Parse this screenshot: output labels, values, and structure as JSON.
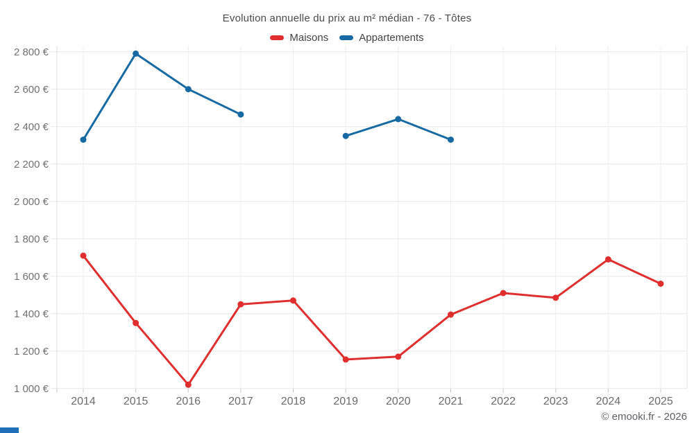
{
  "title": "Evolution annuelle du prix au m² médian - 76 - Tôtes",
  "legend": [
    {
      "label": "Maisons",
      "color": "#e02d2d"
    },
    {
      "label": "Appartements",
      "color": "#1769a4"
    }
  ],
  "footer": {
    "text": "© emooki.fr - 2026"
  },
  "accent_bar": {
    "color": "#1e6fb8"
  },
  "chart_data": {
    "type": "line",
    "title": "Evolution annuelle du prix au m² médian - 76 - Tôtes",
    "x": [
      "2014",
      "2015",
      "2016",
      "2017",
      "2018",
      "2019",
      "2020",
      "2021",
      "2022",
      "2023",
      "2024",
      "2025"
    ],
    "series": [
      {
        "name": "Maisons",
        "color": "#e02d2d",
        "values": [
          1710,
          1350,
          1020,
          1450,
          1470,
          1155,
          1170,
          1395,
          1510,
          1485,
          1690,
          1560
        ]
      },
      {
        "name": "Appartements",
        "color": "#1769a4",
        "values": [
          2330,
          2790,
          2600,
          2465,
          null,
          2350,
          2440,
          2330,
          null,
          null,
          null,
          null
        ]
      }
    ],
    "y_ticks": [
      {
        "value": 1000,
        "label": "1 000 €"
      },
      {
        "value": 1200,
        "label": "1 200 €"
      },
      {
        "value": 1400,
        "label": "1 400 €"
      },
      {
        "value": 1600,
        "label": "1 600 €"
      },
      {
        "value": 1800,
        "label": "1 800 €"
      },
      {
        "value": 2000,
        "label": "2 000 €"
      },
      {
        "value": 2200,
        "label": "2 200 €"
      },
      {
        "value": 2400,
        "label": "2 400 €"
      },
      {
        "value": 2600,
        "label": "2 600 €"
      },
      {
        "value": 2800,
        "label": "2 800 €"
      }
    ],
    "ylim": [
      1000,
      2832
    ],
    "grid": true,
    "legend_position": "top",
    "xlabel": "",
    "ylabel": "",
    "currency": "€"
  }
}
